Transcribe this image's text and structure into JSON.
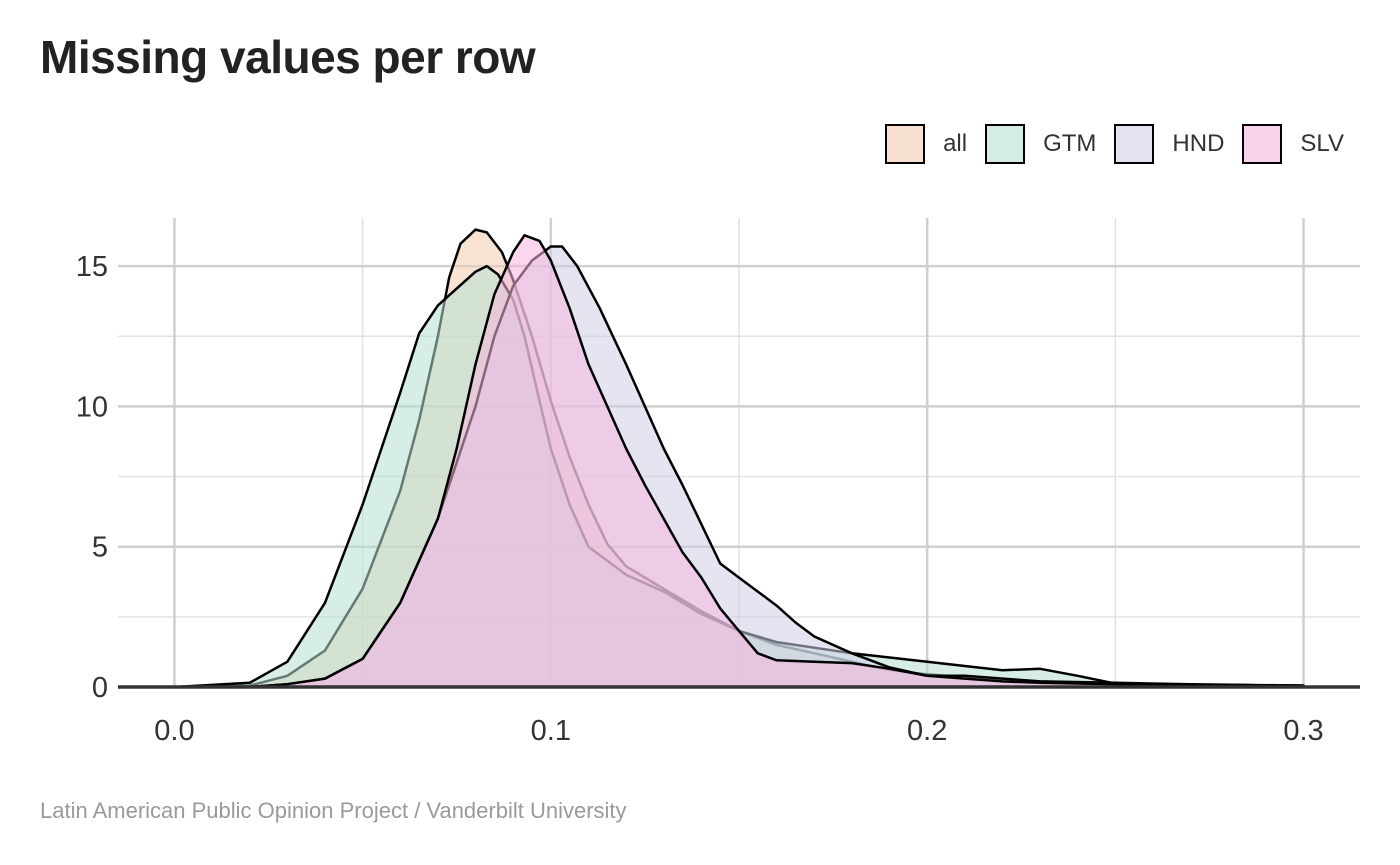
{
  "chart_data": {
    "type": "area",
    "title": "Missing values per row",
    "caption": "Latin American Public Opinion Project / Vanderbilt University",
    "xlabel": "",
    "ylabel": "",
    "xlim": [
      -0.015,
      0.315
    ],
    "ylim": [
      0,
      17
    ],
    "x_ticks": [
      0.0,
      0.1,
      0.2,
      0.3
    ],
    "x_tick_labels": [
      "0.0",
      "0.1",
      "0.2",
      "0.3"
    ],
    "y_ticks": [
      0,
      5,
      10,
      15
    ],
    "y_tick_labels": [
      "0",
      "5",
      "10",
      "15"
    ],
    "grid": true,
    "legend_position": "top-right",
    "series": [
      {
        "name": "all",
        "color": "#F4CDB0",
        "points": [
          [
            0.0,
            0
          ],
          [
            0.02,
            0.05
          ],
          [
            0.03,
            0.4
          ],
          [
            0.04,
            1.3
          ],
          [
            0.05,
            3.5
          ],
          [
            0.06,
            7
          ],
          [
            0.065,
            9.5
          ],
          [
            0.07,
            12.5
          ],
          [
            0.073,
            14.6
          ],
          [
            0.076,
            15.8
          ],
          [
            0.08,
            16.3
          ],
          [
            0.083,
            16.2
          ],
          [
            0.087,
            15.5
          ],
          [
            0.09,
            14.5
          ],
          [
            0.095,
            12.5
          ],
          [
            0.1,
            10.2
          ],
          [
            0.105,
            8.2
          ],
          [
            0.11,
            6.5
          ],
          [
            0.115,
            5.1
          ],
          [
            0.12,
            4.3
          ],
          [
            0.13,
            3.5
          ],
          [
            0.14,
            2.7
          ],
          [
            0.15,
            2.0
          ],
          [
            0.16,
            1.5
          ],
          [
            0.17,
            1.2
          ],
          [
            0.18,
            0.9
          ],
          [
            0.19,
            0.6
          ],
          [
            0.2,
            0.45
          ],
          [
            0.21,
            0.35
          ],
          [
            0.22,
            0.28
          ],
          [
            0.23,
            0.2
          ],
          [
            0.25,
            0.12
          ],
          [
            0.27,
            0.08
          ],
          [
            0.3,
            0.05
          ]
        ]
      },
      {
        "name": "GTM",
        "color": "#B6E0D3",
        "points": [
          [
            0.0,
            0
          ],
          [
            0.02,
            0.15
          ],
          [
            0.03,
            0.9
          ],
          [
            0.04,
            3.0
          ],
          [
            0.05,
            6.5
          ],
          [
            0.06,
            10.5
          ],
          [
            0.065,
            12.6
          ],
          [
            0.07,
            13.6
          ],
          [
            0.075,
            14.2
          ],
          [
            0.08,
            14.8
          ],
          [
            0.083,
            15.0
          ],
          [
            0.086,
            14.7
          ],
          [
            0.09,
            13.8
          ],
          [
            0.093,
            12.5
          ],
          [
            0.097,
            10.2
          ],
          [
            0.1,
            8.5
          ],
          [
            0.105,
            6.5
          ],
          [
            0.11,
            5.0
          ],
          [
            0.12,
            4.0
          ],
          [
            0.13,
            3.4
          ],
          [
            0.14,
            2.6
          ],
          [
            0.15,
            2.0
          ],
          [
            0.16,
            1.6
          ],
          [
            0.17,
            1.4
          ],
          [
            0.18,
            1.2
          ],
          [
            0.19,
            1.05
          ],
          [
            0.2,
            0.9
          ],
          [
            0.21,
            0.75
          ],
          [
            0.22,
            0.6
          ],
          [
            0.23,
            0.65
          ],
          [
            0.24,
            0.4
          ],
          [
            0.25,
            0.12
          ],
          [
            0.27,
            0.08
          ],
          [
            0.3,
            0.05
          ]
        ]
      },
      {
        "name": "HND",
        "color": "#CFCFE8",
        "points": [
          [
            0.0,
            0
          ],
          [
            0.02,
            0
          ],
          [
            0.03,
            0.1
          ],
          [
            0.04,
            0.3
          ],
          [
            0.05,
            1.0
          ],
          [
            0.06,
            3.0
          ],
          [
            0.07,
            6.0
          ],
          [
            0.08,
            10.0
          ],
          [
            0.085,
            12.5
          ],
          [
            0.09,
            14.3
          ],
          [
            0.095,
            15.2
          ],
          [
            0.1,
            15.7
          ],
          [
            0.103,
            15.7
          ],
          [
            0.107,
            15.0
          ],
          [
            0.113,
            13.5
          ],
          [
            0.12,
            11.5
          ],
          [
            0.125,
            10.0
          ],
          [
            0.13,
            8.5
          ],
          [
            0.135,
            7.2
          ],
          [
            0.14,
            5.8
          ],
          [
            0.145,
            4.4
          ],
          [
            0.15,
            3.9
          ],
          [
            0.155,
            3.4
          ],
          [
            0.16,
            2.9
          ],
          [
            0.165,
            2.3
          ],
          [
            0.17,
            1.8
          ],
          [
            0.18,
            1.2
          ],
          [
            0.19,
            0.7
          ],
          [
            0.2,
            0.4
          ],
          [
            0.21,
            0.4
          ],
          [
            0.22,
            0.3
          ],
          [
            0.23,
            0.2
          ],
          [
            0.25,
            0.15
          ],
          [
            0.27,
            0.1
          ],
          [
            0.3,
            0.05
          ]
        ]
      },
      {
        "name": "SLV",
        "color": "#F5B6DC",
        "points": [
          [
            0.0,
            0
          ],
          [
            0.02,
            0
          ],
          [
            0.03,
            0.1
          ],
          [
            0.04,
            0.3
          ],
          [
            0.05,
            1.0
          ],
          [
            0.06,
            3.0
          ],
          [
            0.07,
            6.0
          ],
          [
            0.075,
            8.5
          ],
          [
            0.08,
            11.5
          ],
          [
            0.085,
            14.0
          ],
          [
            0.09,
            15.5
          ],
          [
            0.093,
            16.1
          ],
          [
            0.097,
            15.9
          ],
          [
            0.1,
            15.2
          ],
          [
            0.105,
            13.5
          ],
          [
            0.11,
            11.5
          ],
          [
            0.115,
            10.0
          ],
          [
            0.12,
            8.5
          ],
          [
            0.125,
            7.2
          ],
          [
            0.13,
            6.0
          ],
          [
            0.135,
            4.8
          ],
          [
            0.14,
            3.9
          ],
          [
            0.145,
            2.8
          ],
          [
            0.15,
            2.0
          ],
          [
            0.155,
            1.2
          ],
          [
            0.16,
            0.95
          ],
          [
            0.17,
            0.9
          ],
          [
            0.18,
            0.85
          ],
          [
            0.19,
            0.65
          ],
          [
            0.2,
            0.4
          ],
          [
            0.21,
            0.3
          ],
          [
            0.22,
            0.2
          ],
          [
            0.23,
            0.15
          ],
          [
            0.25,
            0.1
          ],
          [
            0.27,
            0.08
          ],
          [
            0.3,
            0.05
          ]
        ]
      }
    ]
  }
}
